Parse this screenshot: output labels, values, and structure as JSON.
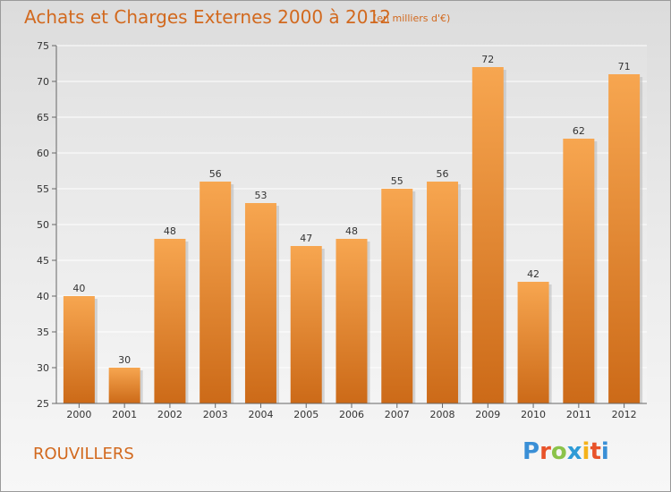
{
  "header": {
    "title": "Achats et Charges Externes 2000 à 2012",
    "subtitle": "(en milliers d'€)"
  },
  "footer": {
    "place": "ROUVILLERS",
    "logo": "Proxiti",
    "logo_colors": [
      "#3a8fd6",
      "#e8532a",
      "#8bc34a",
      "#2e9bd6",
      "#f5b21a",
      "#e8532a",
      "#3a8fd6"
    ]
  },
  "colors": {
    "bar_light": "#f7a650",
    "bar_dark": "#cc6a18",
    "text_accent": "#d2691e"
  },
  "chart_data": {
    "type": "bar",
    "categories": [
      "2000",
      "2001",
      "2002",
      "2003",
      "2004",
      "2005",
      "2006",
      "2007",
      "2008",
      "2009",
      "2010",
      "2011",
      "2012"
    ],
    "values": [
      40,
      30,
      48,
      56,
      53,
      47,
      48,
      55,
      56,
      72,
      42,
      62,
      71
    ],
    "ylim": [
      25,
      75
    ],
    "yticks": [
      25,
      30,
      35,
      40,
      45,
      50,
      55,
      60,
      65,
      70,
      75
    ],
    "grid": true
  }
}
